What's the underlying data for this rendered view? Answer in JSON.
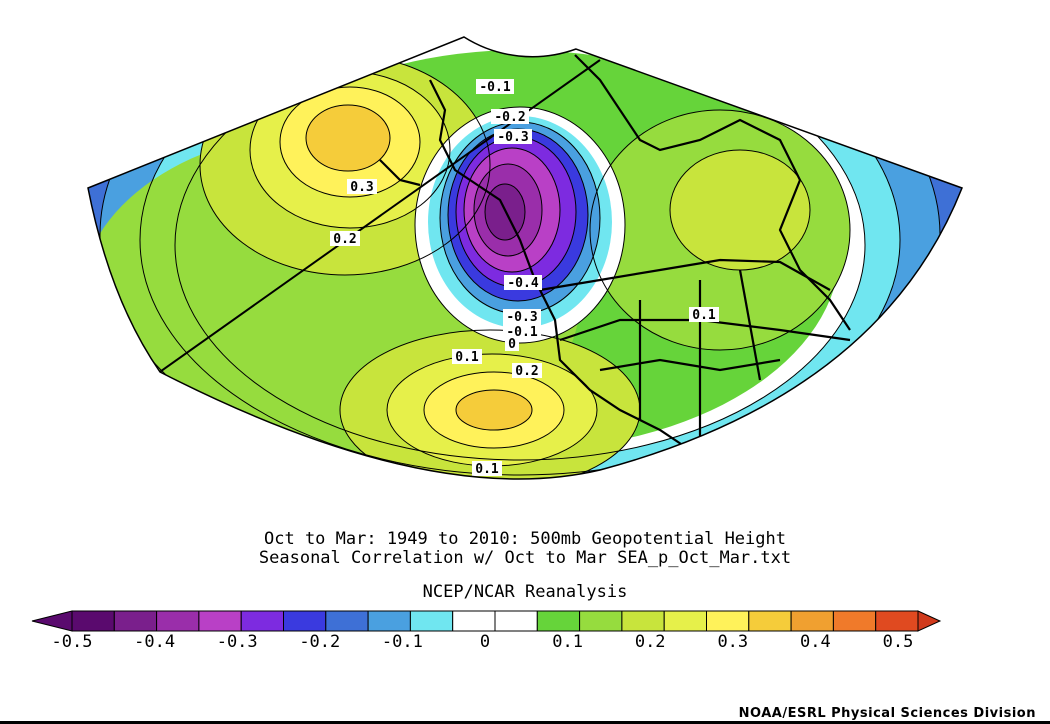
{
  "captions": {
    "line1": "Oct to Mar: 1949 to 2010: 500mb Geopotential Height",
    "line2": "Seasonal Correlation w/ Oct to Mar SEA_p_Oct_Mar.txt",
    "line3": "NCEP/NCAR Reanalysis"
  },
  "credit": "NOAA/ESRL Physical Sciences Division",
  "contour_labels": [
    "-0.1",
    "-0.2",
    "-0.3",
    "0.3",
    "0.2",
    "-0.4",
    "-0.3",
    "-0.1",
    "0",
    "0.1",
    "0.1",
    "0.2",
    "0.1"
  ],
  "colorbar": {
    "tick_labels": [
      "-0.5",
      "-0.4",
      "-0.3",
      "-0.2",
      "-0.1",
      "0",
      "0.1",
      "0.2",
      "0.3",
      "0.4",
      "0.5"
    ],
    "colors": [
      "#5a0a6e",
      "#7a1f8c",
      "#9a2eaa",
      "#b940c6",
      "#7d2be0",
      "#3a3adf",
      "#3e70d6",
      "#4aa0e0",
      "#70e6f0",
      "#ffffff",
      "#ffffff",
      "#66d43a",
      "#96dc3e",
      "#c8e43c",
      "#e6f04a",
      "#fff25a",
      "#f5cc3a",
      "#f0a030",
      "#f07a2a",
      "#e04a20"
    ],
    "min": -0.5,
    "max": 0.5
  },
  "map_data": {
    "field": "Seasonal correlation of 500mb geopotential height",
    "projection": "conic, North Pacific / North America",
    "centers": [
      {
        "sign": "positive",
        "region": "Northwest Pacific",
        "value": 0.3
      },
      {
        "sign": "negative",
        "region": "Gulf of Alaska",
        "value": -0.4
      },
      {
        "sign": "positive",
        "region": "Subtropical Pacific",
        "value": 0.3
      },
      {
        "sign": "positive",
        "region": "Eastern Canada",
        "value": 0.1
      }
    ]
  }
}
